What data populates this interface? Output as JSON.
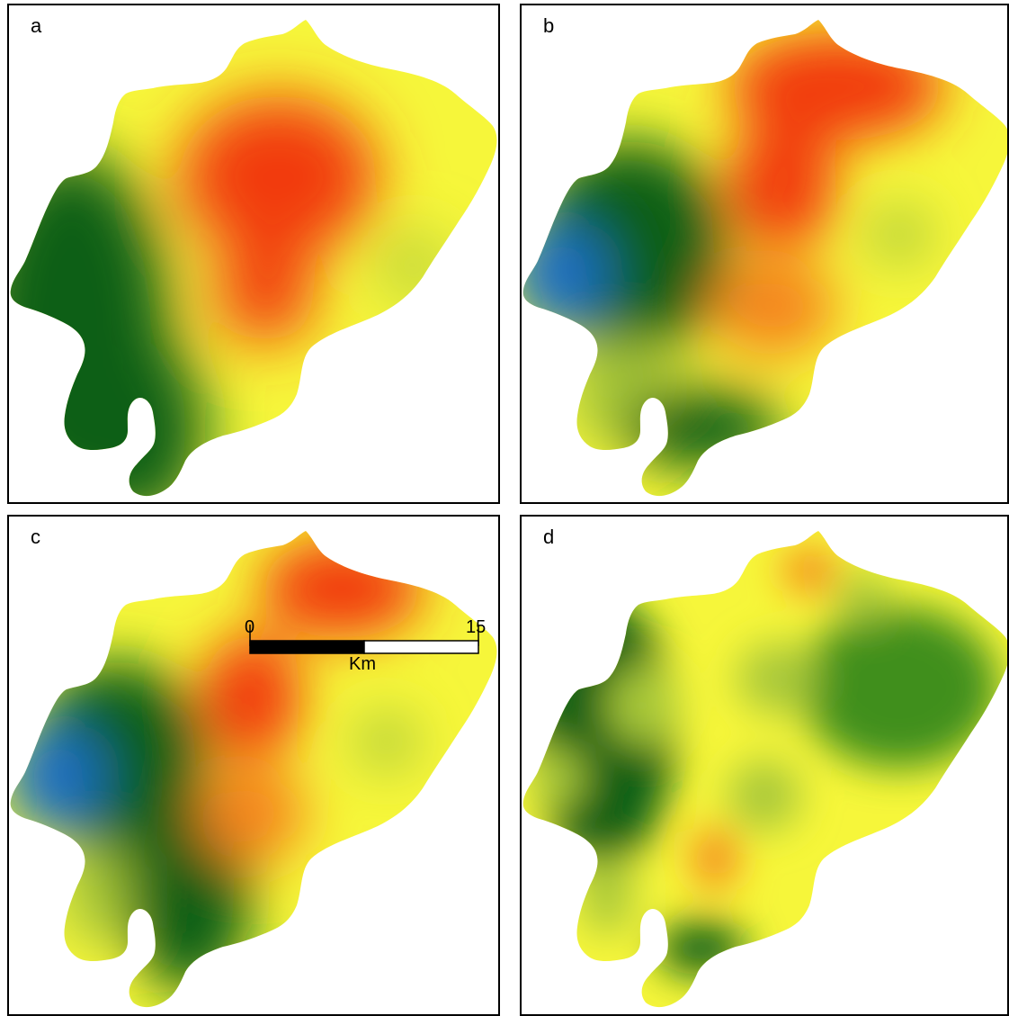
{
  "panels": [
    {
      "id": "a",
      "label": "a"
    },
    {
      "id": "b",
      "label": "b"
    },
    {
      "id": "c",
      "label": "c"
    },
    {
      "id": "d",
      "label": "d"
    }
  ],
  "scale_bar": {
    "start": "0",
    "end": "15",
    "unit": "Km"
  },
  "colors": {
    "blue": "#1f6fc2",
    "dark_green": "#0b5e14",
    "green": "#3f8f1f",
    "yellow_green": "#a8c83a",
    "yellow": "#f6f63a",
    "orange": "#f5841e",
    "red": "#f23a0a",
    "frame": "#000000",
    "background": "#ffffff"
  }
}
